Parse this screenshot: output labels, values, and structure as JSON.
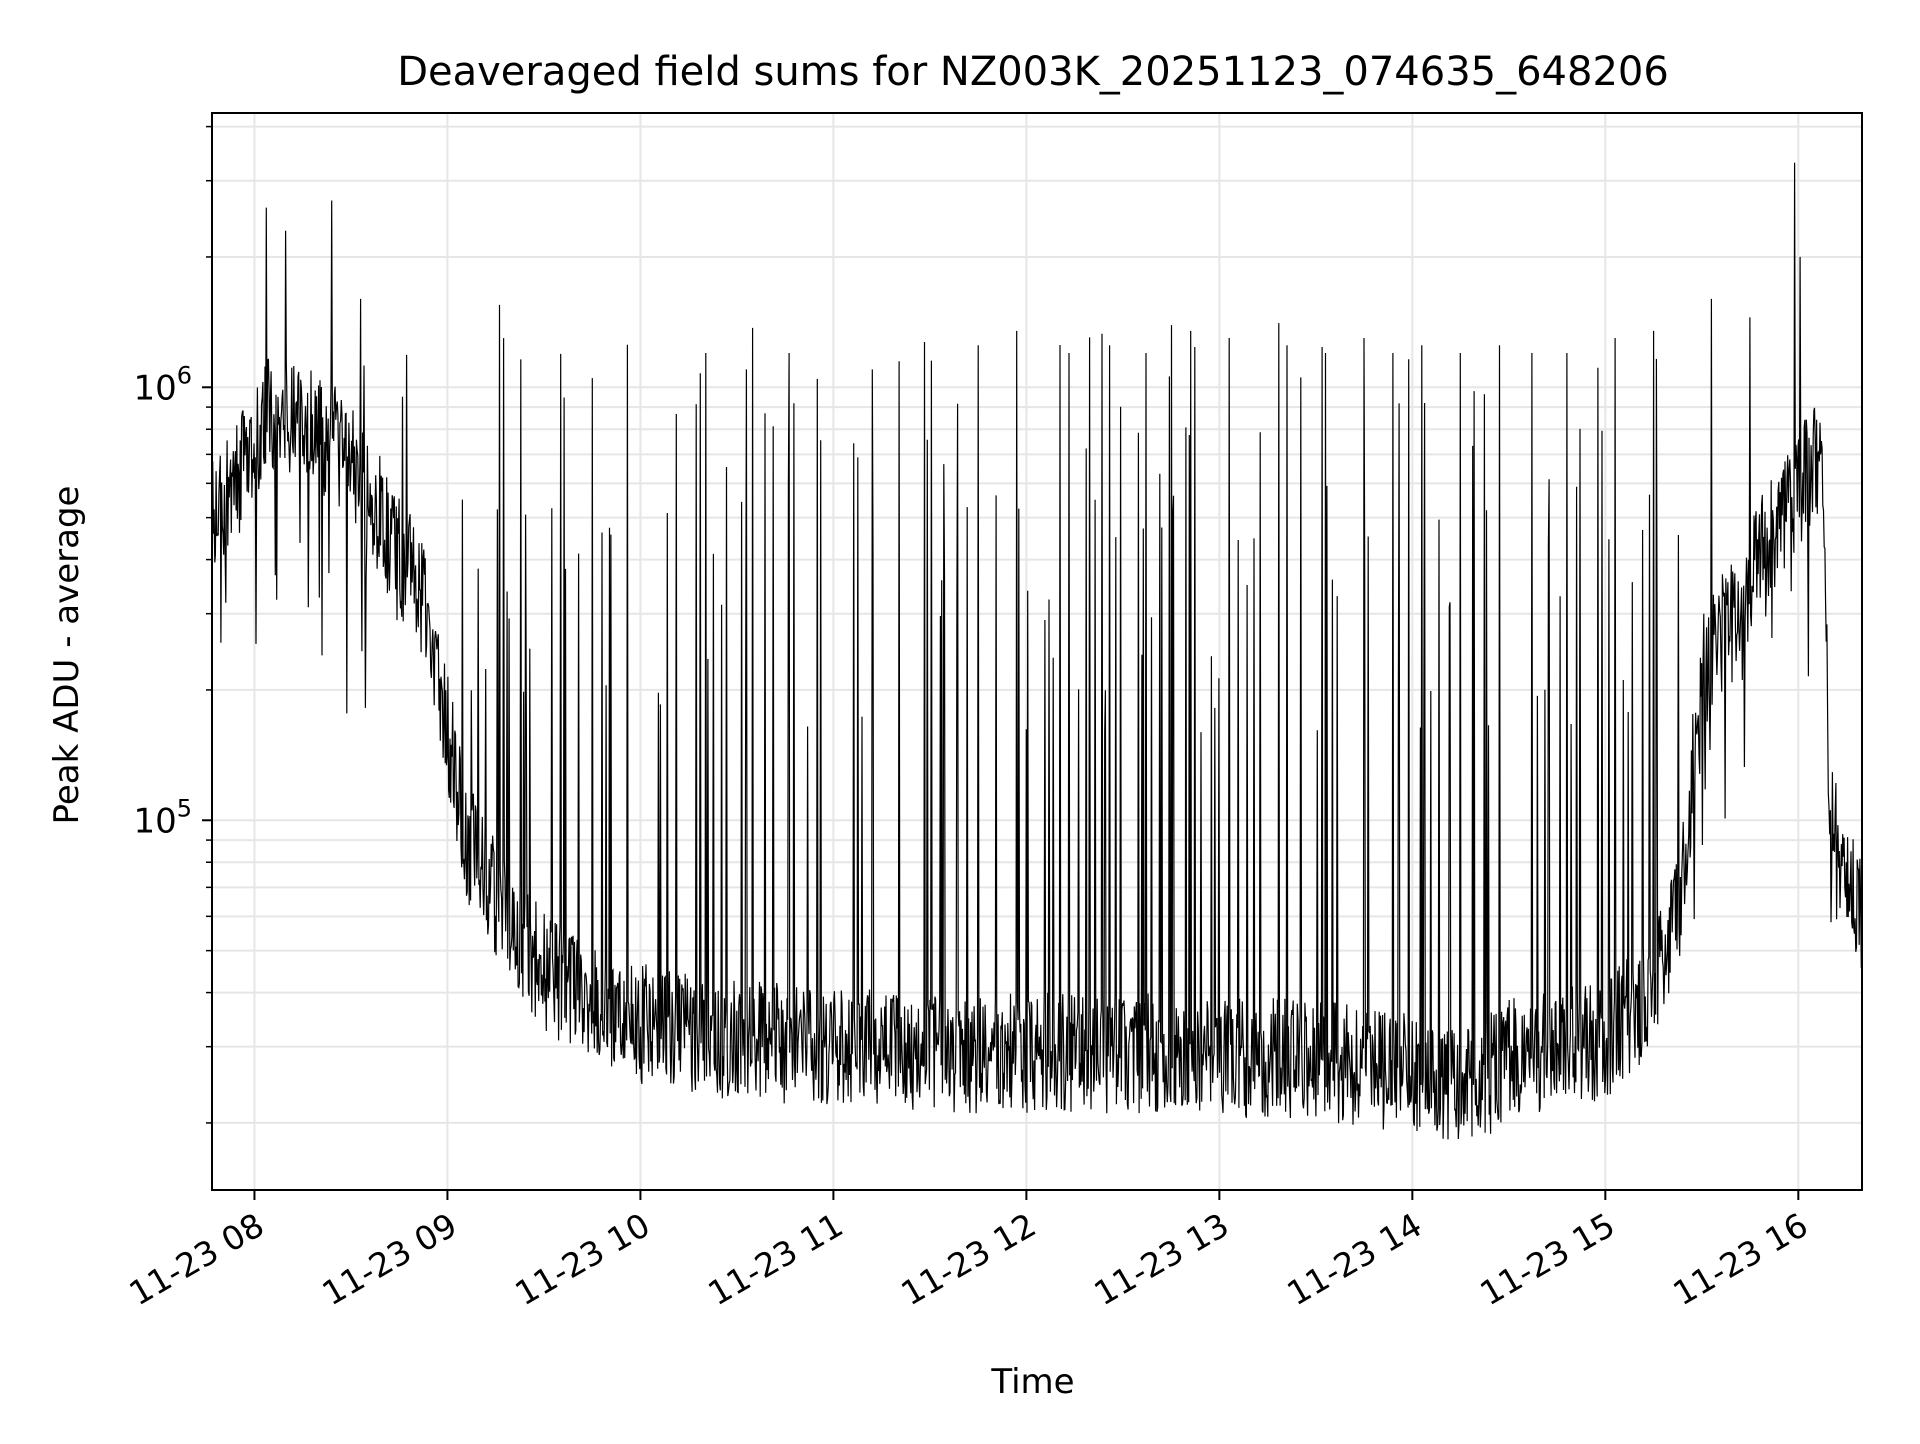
{
  "chart_data": {
    "type": "line",
    "title": "Deaveraged field sums for NZ003K_20251123_074635_648206",
    "xlabel": "Time",
    "ylabel": "Peak ADU - average",
    "yscale": "log",
    "grid": true,
    "line_color": "#000000",
    "grid_color": "#e6e6e6",
    "x_unit": "hours since 11-23 00:00",
    "xlim": [
      7.78,
      16.33
    ],
    "ylim": [
      14000,
      4300000
    ],
    "x_ticks": [
      {
        "value": 8,
        "label": "11-23 08"
      },
      {
        "value": 9,
        "label": "11-23 09"
      },
      {
        "value": 10,
        "label": "11-23 10"
      },
      {
        "value": 11,
        "label": "11-23 11"
      },
      {
        "value": 12,
        "label": "11-23 12"
      },
      {
        "value": 13,
        "label": "11-23 13"
      },
      {
        "value": 14,
        "label": "11-23 14"
      },
      {
        "value": 15,
        "label": "11-23 15"
      },
      {
        "value": 16,
        "label": "11-23 16"
      }
    ],
    "y_major_ticks": [
      {
        "value": 100000,
        "base": "10",
        "exp": "5"
      },
      {
        "value": 1000000,
        "base": "10",
        "exp": "6"
      }
    ],
    "y_minor_ticks": [
      20000,
      30000,
      40000,
      50000,
      60000,
      70000,
      80000,
      90000,
      200000,
      300000,
      400000,
      500000,
      600000,
      700000,
      800000,
      900000,
      2000000,
      3000000,
      4000000
    ],
    "baseline_profile": {
      "x": [
        7.78,
        7.95,
        8.1,
        8.3,
        8.5,
        8.7,
        8.9,
        9.1,
        9.3,
        9.5,
        9.7,
        10.0,
        10.5,
        11.0,
        11.5,
        12.0,
        12.5,
        13.0,
        13.5,
        14.0,
        14.3,
        14.5,
        15.0,
        15.25,
        15.4,
        15.5,
        15.7,
        15.85,
        15.95,
        16.05,
        16.13,
        16.16,
        16.22,
        16.33
      ],
      "y": [
        520000,
        650000,
        900000,
        800000,
        700000,
        450000,
        300000,
        90000,
        60000,
        45000,
        38000,
        34000,
        31000,
        30000,
        29000,
        29000,
        29000,
        28500,
        28000,
        26000,
        24000,
        28000,
        31000,
        40000,
        70000,
        220000,
        320000,
        450000,
        520000,
        650000,
        700000,
        110000,
        80000,
        60000
      ]
    },
    "spikes": [
      {
        "x": 8.06,
        "y": 2600000
      },
      {
        "x": 8.16,
        "y": 2300000
      },
      {
        "x": 8.4,
        "y": 2700000
      },
      {
        "x": 8.55,
        "y": 1600000
      },
      {
        "x": 9.27,
        "y": 1550000
      },
      {
        "x": 9.75,
        "y": 1050000
      },
      {
        "x": 10.34,
        "y": 1200000
      },
      {
        "x": 10.55,
        "y": 1100000
      },
      {
        "x": 10.77,
        "y": 1200000
      },
      {
        "x": 11.2,
        "y": 1100000
      },
      {
        "x": 11.75,
        "y": 1250000
      },
      {
        "x": 11.95,
        "y": 1350000
      },
      {
        "x": 12.22,
        "y": 1200000
      },
      {
        "x": 12.43,
        "y": 1250000
      },
      {
        "x": 12.62,
        "y": 1200000
      },
      {
        "x": 12.85,
        "y": 1350000
      },
      {
        "x": 13.05,
        "y": 1300000
      },
      {
        "x": 13.35,
        "y": 1250000
      },
      {
        "x": 13.55,
        "y": 1200000
      },
      {
        "x": 13.75,
        "y": 1300000
      },
      {
        "x": 13.9,
        "y": 1200000
      },
      {
        "x": 14.05,
        "y": 1250000
      },
      {
        "x": 14.25,
        "y": 1200000
      },
      {
        "x": 14.45,
        "y": 1250000
      },
      {
        "x": 14.62,
        "y": 1200000
      },
      {
        "x": 14.8,
        "y": 1200000
      },
      {
        "x": 15.05,
        "y": 1300000
      },
      {
        "x": 15.25,
        "y": 1350000
      },
      {
        "x": 15.55,
        "y": 1600000
      },
      {
        "x": 15.75,
        "y": 1450000
      },
      {
        "x": 15.98,
        "y": 3300000
      },
      {
        "x": 16.01,
        "y": 2000000
      }
    ]
  }
}
